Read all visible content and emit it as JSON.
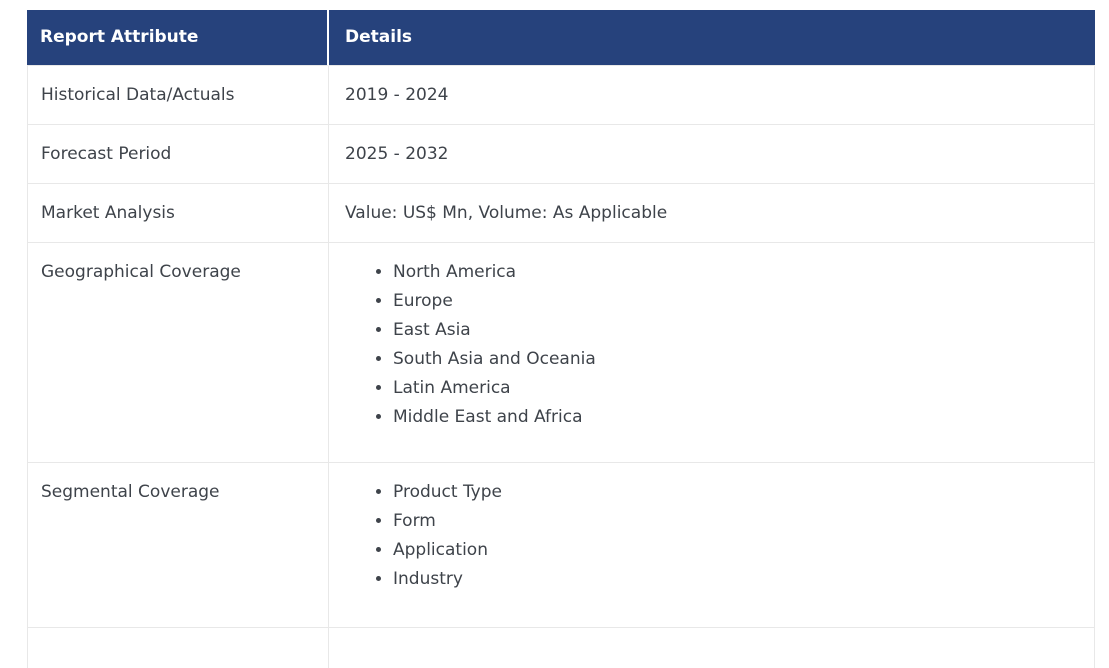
{
  "colors": {
    "header_bg": "#26427c",
    "header_text": "#ffffff",
    "body_text": "#3e434a",
    "border": "#e8e8e8",
    "header_divider": "#ffffff"
  },
  "table": {
    "header": {
      "attribute": "Report Attribute",
      "details": "Details"
    },
    "rows": [
      {
        "attribute": "Historical Data/Actuals",
        "detail": "2019 - 2024"
      },
      {
        "attribute": "Forecast Period",
        "detail": "2025 - 2032"
      },
      {
        "attribute": "Market Analysis",
        "detail": "Value: US$ Mn, Volume: As Applicable"
      },
      {
        "attribute": "Geographical Coverage",
        "items": [
          "North America",
          "Europe",
          "East Asia",
          "South Asia and Oceania",
          "Latin America",
          "Middle East and Africa"
        ]
      },
      {
        "attribute": "Segmental Coverage",
        "items": [
          "Product Type",
          "Form",
          "Application",
          "Industry"
        ]
      }
    ]
  }
}
